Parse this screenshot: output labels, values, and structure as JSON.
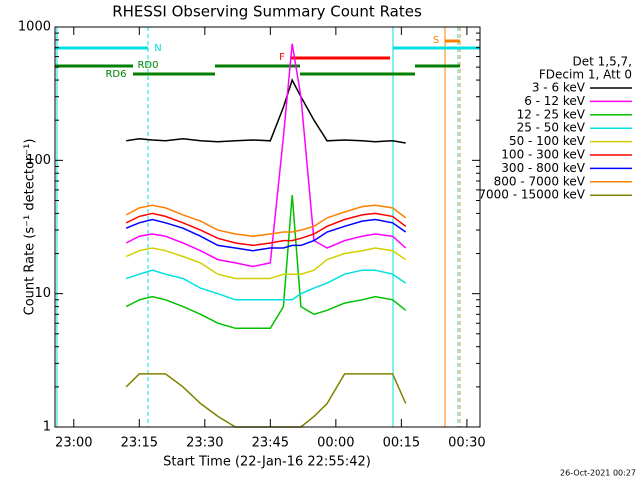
{
  "chart_data": {
    "type": "line",
    "title": "RHESSI Observing Summary Count Rates",
    "x_label": "Start Time (22-Jan-16 22:55:42)",
    "y_label": "Count Rate (s⁻¹ detector⁻¹)",
    "footer": "26-Oct-2021 00:27",
    "legend_header": [
      "Det 1,5,7,",
      "FDecim 1, Att 0"
    ],
    "annotations": [
      "N",
      "RD0",
      "RD6",
      "F",
      "S"
    ],
    "log_y": true,
    "x": [
      "23:12",
      "23:15",
      "23:18",
      "23:21",
      "23:25",
      "23:29",
      "23:33",
      "23:37",
      "23:41",
      "23:45",
      "23:48",
      "23:50",
      "23:52",
      "23:55",
      "23:58",
      "00:02",
      "00:06",
      "00:09",
      "00:13",
      "00:16"
    ],
    "xlim": [
      "22:55:42",
      "00:33"
    ],
    "xticks": [
      "23:00",
      "23:15",
      "23:30",
      "23:45",
      "00:00",
      "00:15",
      "00:30"
    ],
    "ylim": [
      1,
      1000
    ],
    "yticks": [
      1,
      10,
      100,
      1000
    ],
    "series": [
      {
        "name": "3 - 6 keV",
        "color": "#000000",
        "values": [
          140,
          145,
          142,
          140,
          145,
          140,
          138,
          140,
          142,
          140,
          250,
          400,
          300,
          200,
          140,
          142,
          140,
          138,
          140,
          135
        ]
      },
      {
        "name": "6 - 12 keV",
        "color": "#ff00ff",
        "values": [
          24,
          27,
          28,
          27,
          24,
          21,
          18,
          17,
          16,
          17,
          150,
          750,
          300,
          25,
          22,
          25,
          27,
          28,
          27,
          22
        ]
      },
      {
        "name": "12 - 25 keV",
        "color": "#00c000",
        "values": [
          8,
          9,
          9.5,
          9,
          8,
          7,
          6,
          5.5,
          5.5,
          5.5,
          8,
          55,
          8,
          7,
          7.5,
          8.5,
          9,
          9.5,
          9,
          7.5
        ]
      },
      {
        "name": "25 - 50 keV",
        "color": "#00e0e0",
        "values": [
          13,
          14,
          15,
          14,
          13,
          11,
          10,
          9,
          9,
          9,
          9,
          9,
          10,
          11,
          12,
          14,
          15,
          15,
          14,
          12
        ]
      },
      {
        "name": "50 - 100 keV",
        "color": "#d0d000",
        "values": [
          19,
          21,
          22,
          21,
          19,
          17,
          14,
          13,
          13,
          13,
          14,
          14,
          14,
          15,
          18,
          20,
          21,
          22,
          21,
          18
        ]
      },
      {
        "name": "100 - 300 keV",
        "color": "#ff0000",
        "values": [
          34,
          38,
          40,
          38,
          34,
          30,
          26,
          24,
          23,
          24,
          25,
          25,
          26,
          28,
          32,
          36,
          39,
          40,
          38,
          32
        ]
      },
      {
        "name": "300 - 800 keV",
        "color": "#0000ff",
        "values": [
          31,
          34,
          36,
          34,
          31,
          27,
          23,
          22,
          21,
          22,
          22,
          23,
          23,
          25,
          29,
          32,
          35,
          36,
          34,
          29
        ]
      },
      {
        "name": "800 - 7000 keV",
        "color": "#ff8000",
        "values": [
          39,
          44,
          46,
          44,
          39,
          35,
          30,
          28,
          27,
          28,
          29,
          29,
          30,
          32,
          37,
          41,
          45,
          46,
          44,
          37
        ]
      },
      {
        "name": "7000 - 15000 keV",
        "color": "#808000",
        "values": [
          2,
          2.5,
          2.5,
          2.5,
          2,
          1.5,
          1.2,
          1,
          1,
          1,
          1,
          1,
          1,
          1.2,
          1.5,
          2.5,
          2.5,
          2.5,
          2.5,
          1.5
        ]
      }
    ]
  }
}
